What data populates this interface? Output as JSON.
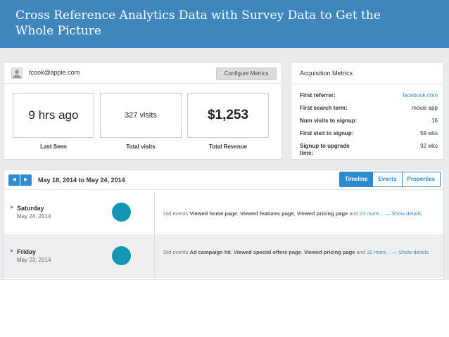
{
  "slide": {
    "title": "Cross Reference Analytics Data with Survey Data to Get the Whole Picture"
  },
  "profile": {
    "email": "tcook@apple.com",
    "configure_label": "Configure Metrics",
    "stats": [
      {
        "value": "9 hrs ago",
        "label": "Last Seen"
      },
      {
        "value": "327 visits",
        "label": "Total visits"
      },
      {
        "value": "$1,253",
        "label": "Total Revenue"
      }
    ]
  },
  "acquisition": {
    "title": "Acquisition Metrics",
    "rows": [
      {
        "label": "First referrer:",
        "value": "facebook.com"
      },
      {
        "label": "First search term:",
        "value": "movie app"
      },
      {
        "label": "Num visits to signup:",
        "value": "16"
      },
      {
        "label": "First visit to signup:",
        "value": "59 wks"
      },
      {
        "label": "Signup to upgrade time:",
        "value": "92 wks"
      }
    ]
  },
  "timeline": {
    "date_range": "May 18, 2014 to May 24, 2014",
    "tabs": [
      "Timeline",
      "Events",
      "Properties"
    ],
    "active_tab": "Timeline",
    "days": [
      {
        "day": "Saturday",
        "date": "May 24, 2014",
        "prefix": "Did events",
        "events": [
          "Viewed home page",
          "Viewed features page",
          "Viewed pricing page"
        ],
        "and_text": "and",
        "more": "23 more...",
        "separator": "—",
        "show": "Show details"
      },
      {
        "day": "Friday",
        "date": "May 23, 2014",
        "prefix": "Did events",
        "events": [
          "Ad campaign hit",
          "Viewed special offers page",
          "Viewed pricing page"
        ],
        "and_text": "and",
        "more": "32 more...",
        "separator": "—",
        "show": "Show details"
      }
    ]
  },
  "icons": {
    "prev": "chevron-left-icon",
    "next": "chevron-right-icon",
    "expand": "caret-right-icon",
    "avatar": "user-avatar-icon"
  },
  "colors": {
    "banner": "#3f86bd",
    "accent": "#2d8bd1",
    "dot": "#1596b5",
    "link": "#3b8bc8"
  }
}
